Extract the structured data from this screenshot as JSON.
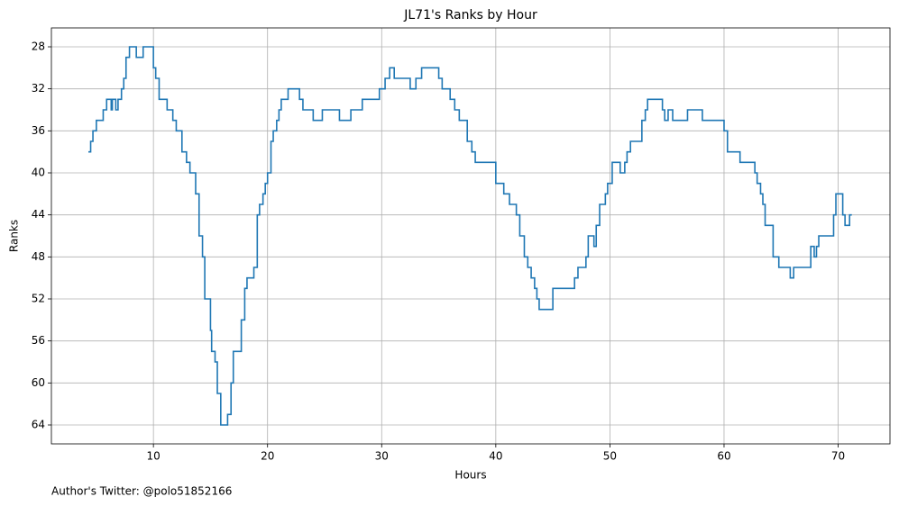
{
  "chart_data": {
    "type": "step",
    "title": "JL71's Ranks by Hour",
    "xlabel": "Hours",
    "ylabel": "Ranks",
    "footnote": "Author's Twitter: @polo51852166",
    "series": [
      {
        "name": "Ranks",
        "color": "#1f77b4",
        "x": [
          4.3,
          4.5,
          4.7,
          5.0,
          5.6,
          5.9,
          6.3,
          6.4,
          6.7,
          6.9,
          7.2,
          7.4,
          7.6,
          7.9,
          8.5,
          9.1,
          10.0,
          10.2,
          10.5,
          11.2,
          11.7,
          12.0,
          12.5,
          12.9,
          13.2,
          13.7,
          14.0,
          14.3,
          14.5,
          15.0,
          15.1,
          15.4,
          15.6,
          15.9,
          16.5,
          16.8,
          17.0,
          17.7,
          18.0,
          18.2,
          18.8,
          19.1,
          19.3,
          19.6,
          19.8,
          20.0,
          20.3,
          20.5,
          20.8,
          21.0,
          21.2,
          21.8,
          22.8,
          23.1,
          24.0,
          24.8,
          26.3,
          27.3,
          28.3,
          29.8,
          30.3,
          30.7,
          31.1,
          32.5,
          33.0,
          33.5,
          35.0,
          35.3,
          36.0,
          36.4,
          36.8,
          37.5,
          37.9,
          38.2,
          40.0,
          40.7,
          41.2,
          41.8,
          42.1,
          42.5,
          42.8,
          43.1,
          43.4,
          43.6,
          43.8,
          45.0,
          46.9,
          47.2,
          47.9,
          48.1,
          48.6,
          48.8,
          49.1,
          49.6,
          49.8,
          50.2,
          50.9,
          51.3,
          51.5,
          51.8,
          52.8,
          53.1,
          53.3,
          54.6,
          54.8,
          55.1,
          55.5,
          56.8,
          58.1,
          60.0,
          60.3,
          61.4,
          62.7,
          62.9,
          63.2,
          63.4,
          63.6,
          64.3,
          64.8,
          65.8,
          66.1,
          67.6,
          67.9,
          68.1,
          68.3,
          69.6,
          69.8,
          70.4,
          70.6,
          71.0,
          71.2
        ],
        "values": [
          38,
          37,
          36,
          35,
          34,
          33,
          34,
          33,
          34,
          33,
          32,
          31,
          29,
          28,
          29,
          28,
          30,
          31,
          33,
          34,
          35,
          36,
          38,
          39,
          40,
          42,
          46,
          48,
          52,
          55,
          57,
          58,
          61,
          64,
          63,
          60,
          57,
          54,
          51,
          50,
          49,
          44,
          43,
          42,
          41,
          40,
          37,
          36,
          35,
          34,
          33,
          32,
          33,
          34,
          35,
          34,
          35,
          34,
          33,
          32,
          31,
          30,
          31,
          32,
          31,
          30,
          31,
          32,
          33,
          34,
          35,
          37,
          38,
          39,
          41,
          42,
          43,
          44,
          46,
          48,
          49,
          50,
          51,
          52,
          53,
          51,
          50,
          49,
          48,
          46,
          47,
          45,
          43,
          42,
          41,
          39,
          40,
          39,
          38,
          37,
          35,
          34,
          33,
          34,
          35,
          34,
          35,
          34,
          35,
          36,
          38,
          39,
          40,
          41,
          42,
          43,
          45,
          48,
          49,
          50,
          49,
          47,
          48,
          47,
          46,
          44,
          42,
          44,
          45,
          44,
          44
        ]
      }
    ],
    "xlim": [
      1.06,
      74.54
    ],
    "xticks": [
      10,
      20,
      30,
      40,
      50,
      60,
      70
    ],
    "ylim": [
      65.8,
      26.2
    ],
    "yticks": [
      28,
      32,
      36,
      40,
      44,
      48,
      52,
      56,
      60,
      64
    ],
    "y_inverted": true,
    "grid": true
  }
}
